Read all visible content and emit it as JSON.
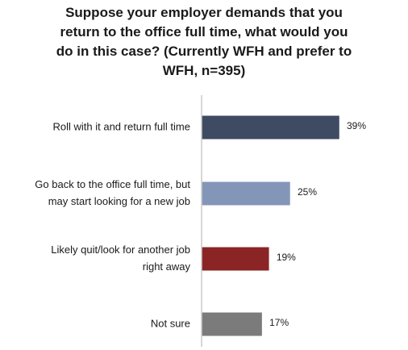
{
  "chart_data": {
    "type": "bar",
    "orientation": "horizontal",
    "title_lines": [
      "Suppose your employer demands that you",
      "return to the office full time, what would you",
      "do in this case? (Currently WFH and prefer to",
      "WFH, n=395)"
    ],
    "categories": [
      [
        "Roll with it and return full time"
      ],
      [
        "Go back to the office full time, but",
        "may start looking for a new job"
      ],
      [
        "Likely quit/look for another job",
        "right away"
      ],
      [
        "Not sure"
      ]
    ],
    "values": [
      39,
      25,
      19,
      17
    ],
    "value_labels": [
      "39%",
      "25%",
      "19%",
      "17%"
    ],
    "colors": [
      "#3f4a63",
      "#8496b8",
      "#8b2424",
      "#7b7b7b"
    ],
    "axis_line_color": "#c8c8c8",
    "grid": false,
    "legend": "none",
    "xlim": [
      0,
      39
    ]
  }
}
